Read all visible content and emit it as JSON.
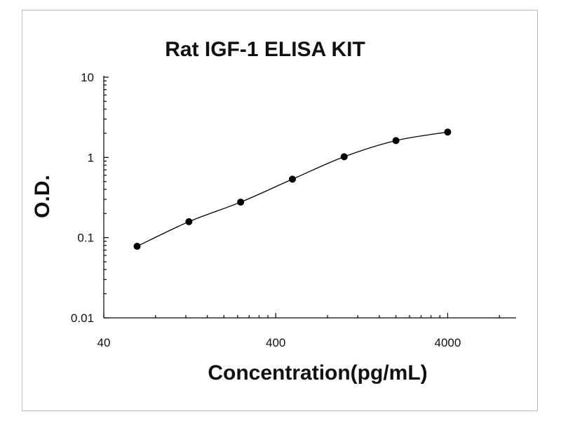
{
  "chart_data": {
    "type": "scatter",
    "title": "Rat IGF-1 ELISA KIT",
    "xlabel": "Concentration(pg/mL)",
    "ylabel": "O.D.",
    "x_scale": "log",
    "y_scale": "log",
    "xlim": [
      40,
      10000
    ],
    "ylim": [
      0.01,
      10
    ],
    "x_tick_labels": [
      "40",
      "400",
      "4000"
    ],
    "y_tick_labels": [
      "10",
      "1",
      "0.1",
      "0.01"
    ],
    "x_tick_values": [
      40,
      400,
      4000
    ],
    "y_tick_values": [
      10,
      1,
      0.1,
      0.01
    ],
    "grid": false,
    "legend": "none",
    "series": [
      {
        "x": [
          62.5,
          125,
          250,
          500,
          1000,
          2000,
          4000
        ],
        "y": [
          0.078,
          0.158,
          0.277,
          0.535,
          1.02,
          1.62,
          2.07
        ]
      }
    ]
  }
}
